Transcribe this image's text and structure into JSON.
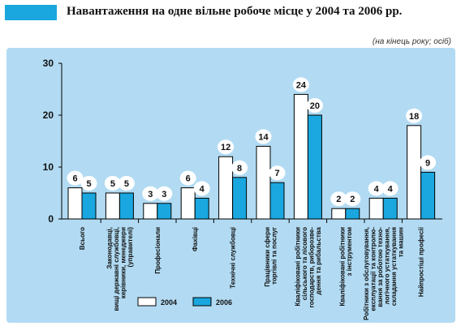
{
  "title": "Навантаження на одне вільне робоче місце у 2004 та 2006 рр.",
  "subtitle": "(на кінець року; осіб)",
  "colors": {
    "panel": "#b2dbf3",
    "s2004": "#ffffff",
    "s2006": "#1aa7df",
    "axis": "#000000"
  },
  "chart_data": {
    "type": "bar",
    "ylim": [
      0,
      30
    ],
    "yticks": [
      0,
      10,
      20,
      30
    ],
    "legend": "bottom",
    "categories": [
      [
        "Всього"
      ],
      [
        "Законодавці,",
        "вищі державні службовці,",
        "керівники, менеджери",
        "(управителі)"
      ],
      [
        "Професіонали"
      ],
      [
        "Фахівці"
      ],
      [
        "Технічні службовці"
      ],
      [
        "Працівники сфери",
        "торгівлі та послуг"
      ],
      [
        "Кваліфіковані робітники",
        "сільського та лісового",
        "господарств, риборозве-",
        "дення та рибальства"
      ],
      [
        "Кваліфіковані робітники",
        "з інструментом"
      ],
      [
        "Робітники з обслуговування,",
        "експлуатації та контролю-",
        "вання за роботою техно-",
        "логічного устаткування,",
        "складання устаткування",
        "та машин"
      ],
      [
        "Найпростіші професії"
      ]
    ],
    "series": [
      {
        "name": "2004",
        "values": [
          6,
          5,
          3,
          6,
          12,
          14,
          24,
          2,
          4,
          18
        ]
      },
      {
        "name": "2006",
        "values": [
          5,
          5,
          3,
          4,
          8,
          7,
          20,
          2,
          4,
          9
        ]
      }
    ]
  }
}
